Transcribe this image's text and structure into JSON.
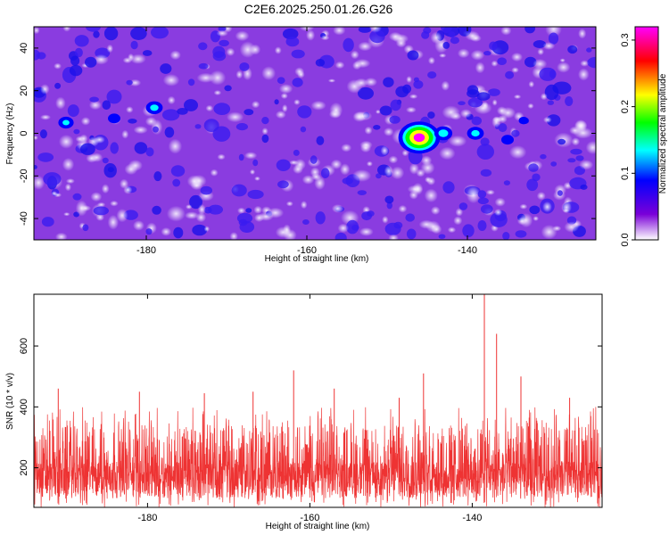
{
  "title": "C2E6.2025.250.01.26.G26",
  "chart_data": [
    {
      "type": "heatmap",
      "xlabel": "Height of straight line (km)",
      "ylabel": "Frequency (Hz)",
      "xlim": [
        -194,
        -124
      ],
      "ylim": [
        -50,
        50
      ],
      "xticks": [
        "-180",
        "-160",
        "-140"
      ],
      "xtick_values": [
        -180,
        -160,
        -140
      ],
      "yticks": [
        "-40",
        "-20",
        "0",
        "20",
        "40"
      ],
      "ytick_values": [
        -40,
        -20,
        0,
        20,
        40
      ],
      "colorbar": {
        "label": "Normalized spectral amplitude",
        "range": [
          0,
          0.32
        ],
        "ticks": [
          "0.0",
          "0.1",
          "0.2",
          "0.3"
        ],
        "tick_values": [
          0,
          0.1,
          0.2,
          0.3
        ],
        "colors": [
          "#ffffff",
          "#7a00d8",
          "#0000ff",
          "#00ffff",
          "#00ff00",
          "#ffff00",
          "#ff0000",
          "#ff00ff"
        ]
      },
      "hotspots": [
        {
          "x": -190,
          "y": 5,
          "value": 0.12
        },
        {
          "x": -184,
          "y": 7,
          "value": 0.1
        },
        {
          "x": -179,
          "y": 12,
          "value": 0.13
        },
        {
          "x": -146,
          "y": -2,
          "value": 0.31
        },
        {
          "x": -143,
          "y": 0,
          "value": 0.14
        },
        {
          "x": -139,
          "y": 0,
          "value": 0.13
        },
        {
          "x": -135,
          "y": -3,
          "value": 0.1
        },
        {
          "x": -133,
          "y": 6,
          "value": 0.08
        }
      ]
    },
    {
      "type": "line",
      "xlabel": "Height of straight line (km)",
      "ylabel": "SNR (10 * v/v)",
      "xlim": [
        -194,
        -124
      ],
      "ylim": [
        70,
        770
      ],
      "xticks": [
        "-180",
        "-160",
        "-140"
      ],
      "xtick_values": [
        -180,
        -160,
        -140
      ],
      "yticks": [
        "200",
        "400",
        "600"
      ],
      "ytick_values": [
        200,
        400,
        600
      ],
      "color": "#ee3333",
      "baseline": 160,
      "noise_band": [
        70,
        340
      ],
      "peaks": [
        {
          "x": -191,
          "y": 460
        },
        {
          "x": -181,
          "y": 450
        },
        {
          "x": -173,
          "y": 445
        },
        {
          "x": -167,
          "y": 450
        },
        {
          "x": -162,
          "y": 520
        },
        {
          "x": -157,
          "y": 460
        },
        {
          "x": -149,
          "y": 430
        },
        {
          "x": -146,
          "y": 510
        },
        {
          "x": -138.5,
          "y": 770
        },
        {
          "x": -137,
          "y": 640
        },
        {
          "x": -134,
          "y": 500
        },
        {
          "x": -128,
          "y": 430
        }
      ]
    }
  ]
}
